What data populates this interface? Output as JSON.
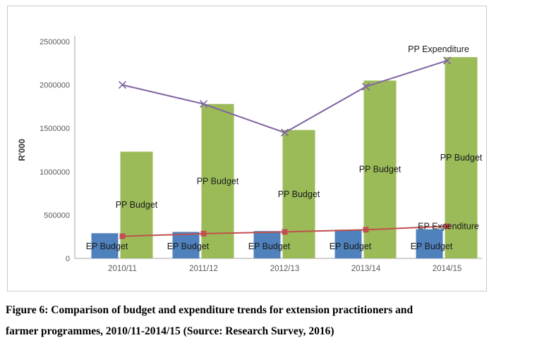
{
  "figure": {
    "caption_line1": "Figure 6: Comparison of budget and expenditure trends for extension practitioners and",
    "caption_line2": "farmer programmes, 2010/11-2014/15 (Source: Research Survey, 2016)"
  },
  "chart_data": {
    "type": "bar+line combo",
    "title": "",
    "categories": [
      "2010/11",
      "2011/12",
      "2012/13",
      "2013/14",
      "2014/15"
    ],
    "bar_series": [
      {
        "name": "EP Budget",
        "color": "#4f81bd",
        "values": [
          290000,
          305000,
          315000,
          330000,
          335000
        ]
      },
      {
        "name": "PP Budget",
        "color": "#9bbb59",
        "values": [
          1230000,
          1780000,
          1480000,
          2050000,
          2320000
        ]
      }
    ],
    "line_series": [
      {
        "name": "PP Expenditure",
        "color": "#8064a2",
        "marker": "x",
        "values": [
          2000000,
          1780000,
          1450000,
          1980000,
          2280000
        ]
      },
      {
        "name": "EP Expenditure",
        "color": "#c0504d",
        "marker": "square",
        "values": [
          255000,
          285000,
          305000,
          330000,
          370000
        ]
      }
    ],
    "xlabel": "",
    "ylabel": "R'000",
    "ylim": [
      0,
      2500000
    ],
    "ytick_step": 500000,
    "ytick_labels": [
      "0",
      "500000",
      "1000000",
      "1500000",
      "2000000",
      "2500000"
    ],
    "grid": false,
    "legend_position": "none",
    "data_labels": {
      "ep_budget": "EP Budget",
      "pp_budget": "PP Budget",
      "pp_expenditure": "PP Expenditure",
      "ep_expenditure": "EP Expenditure"
    },
    "colors": {
      "axis_text": "#595959",
      "label_text": "#1a1a1a",
      "axis_line": "#a6a6a6",
      "frame_border": "#c9c9c9"
    }
  }
}
